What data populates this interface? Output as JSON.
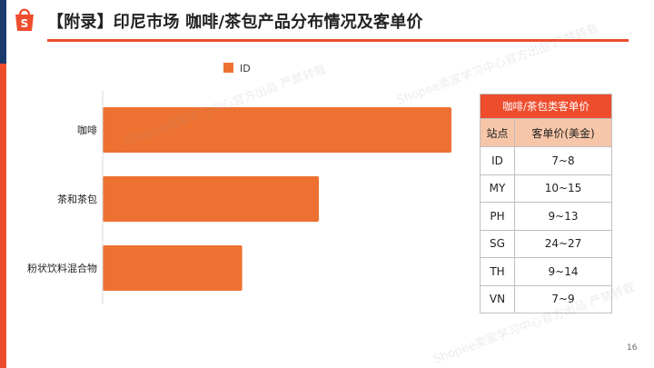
{
  "header": {
    "title": "【附录】印尼市场 咖啡/茶包产品分布情况及客单价"
  },
  "chart_data": {
    "type": "bar",
    "orientation": "horizontal",
    "categories": [
      "咖啡",
      "茶和茶包",
      "粉状饮料混合物"
    ],
    "series": [
      {
        "name": "ID",
        "values": [
          100,
          62,
          40
        ]
      }
    ],
    "legend_position": "top",
    "bar_color": "#ed7131",
    "grid": false
  },
  "price_table": {
    "title": "咖啡/茶包类客单价",
    "headers": [
      "站点",
      "客单价(美金)"
    ],
    "rows": [
      [
        "ID",
        "7~8"
      ],
      [
        "MY",
        "10~15"
      ],
      [
        "PH",
        "9~13"
      ],
      [
        "SG",
        "24~27"
      ],
      [
        "TH",
        "9~14"
      ],
      [
        "VN",
        "7~9"
      ]
    ]
  },
  "page_number": "16",
  "watermark_text": "Shopee卖家学习中心官方出品 严禁转载",
  "colors": {
    "accent": "#ee4d2d",
    "bar": "#ed7131",
    "table_header": "#f7c6a8"
  }
}
